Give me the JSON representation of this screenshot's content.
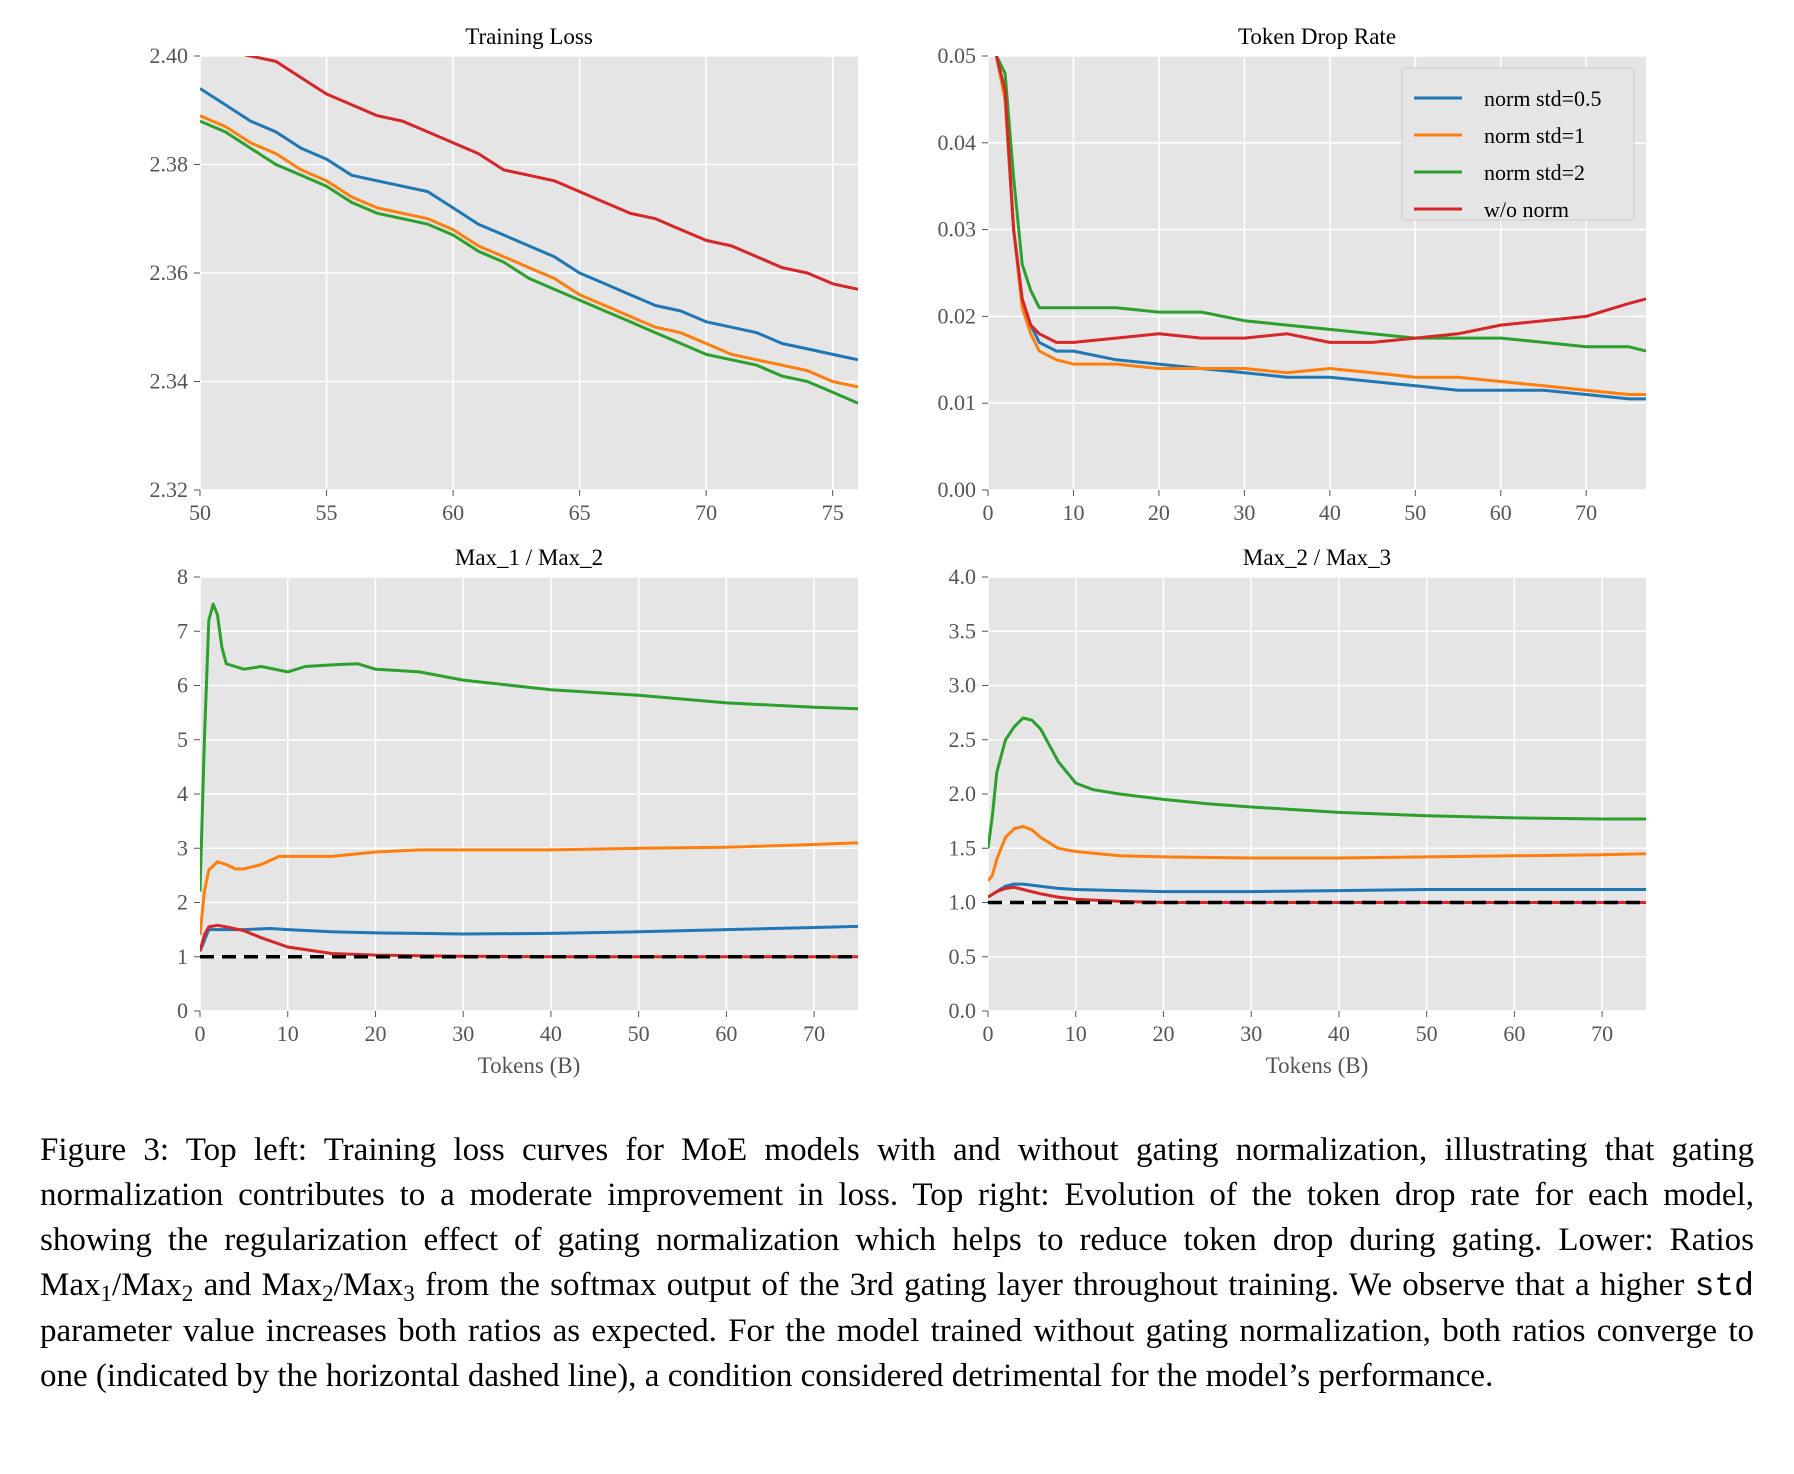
{
  "figure": {
    "colors": {
      "norm_std_0_5": "#1f77b4",
      "norm_std_1": "#ff7f0e",
      "norm_std_2": "#2ca02c",
      "wo_norm": "#d62728",
      "background": "#e5e5e5",
      "grid": "#ffffff",
      "reference": "#000000"
    },
    "legend_placement": "top-right of Token Drop Rate panel"
  },
  "chart_data": [
    {
      "id": "training_loss",
      "type": "line",
      "title": "Training Loss",
      "xlabel": "",
      "ylabel": "",
      "xlim": [
        50,
        76
      ],
      "ylim": [
        2.32,
        2.4
      ],
      "xticks": [
        50,
        55,
        60,
        65,
        70,
        75
      ],
      "xtick_labels": [
        "50",
        "55",
        "60",
        "65",
        "70",
        "75"
      ],
      "yticks": [
        2.32,
        2.34,
        2.36,
        2.38,
        2.4
      ],
      "ytick_labels": [
        "2.32",
        "2.34",
        "2.36",
        "2.38",
        "2.40"
      ],
      "grid": true,
      "series": [
        {
          "name": "norm std=0.5",
          "color": "#1f77b4",
          "x": [
            50,
            51,
            52,
            53,
            54,
            55,
            56,
            57,
            58,
            59,
            60,
            61,
            62,
            63,
            64,
            65,
            66,
            67,
            68,
            69,
            70,
            71,
            72,
            73,
            74,
            75,
            76
          ],
          "y": [
            2.394,
            2.391,
            2.388,
            2.386,
            2.383,
            2.381,
            2.378,
            2.377,
            2.376,
            2.375,
            2.372,
            2.369,
            2.367,
            2.365,
            2.363,
            2.36,
            2.358,
            2.356,
            2.354,
            2.353,
            2.351,
            2.35,
            2.349,
            2.347,
            2.346,
            2.345,
            2.344
          ]
        },
        {
          "name": "norm std=1",
          "color": "#ff7f0e",
          "x": [
            50,
            51,
            52,
            53,
            54,
            55,
            56,
            57,
            58,
            59,
            60,
            61,
            62,
            63,
            64,
            65,
            66,
            67,
            68,
            69,
            70,
            71,
            72,
            73,
            74,
            75,
            76
          ],
          "y": [
            2.389,
            2.387,
            2.384,
            2.382,
            2.379,
            2.377,
            2.374,
            2.372,
            2.371,
            2.37,
            2.368,
            2.365,
            2.363,
            2.361,
            2.359,
            2.356,
            2.354,
            2.352,
            2.35,
            2.349,
            2.347,
            2.345,
            2.344,
            2.343,
            2.342,
            2.34,
            2.339
          ]
        },
        {
          "name": "norm std=2",
          "color": "#2ca02c",
          "x": [
            50,
            51,
            52,
            53,
            54,
            55,
            56,
            57,
            58,
            59,
            60,
            61,
            62,
            63,
            64,
            65,
            66,
            67,
            68,
            69,
            70,
            71,
            72,
            73,
            74,
            75,
            76
          ],
          "y": [
            2.388,
            2.386,
            2.383,
            2.38,
            2.378,
            2.376,
            2.373,
            2.371,
            2.37,
            2.369,
            2.367,
            2.364,
            2.362,
            2.359,
            2.357,
            2.355,
            2.353,
            2.351,
            2.349,
            2.347,
            2.345,
            2.344,
            2.343,
            2.341,
            2.34,
            2.338,
            2.336
          ]
        },
        {
          "name": "w/o norm",
          "color": "#d62728",
          "x": [
            50,
            51,
            52,
            53,
            54,
            55,
            56,
            57,
            58,
            59,
            60,
            61,
            62,
            63,
            64,
            65,
            66,
            67,
            68,
            69,
            70,
            71,
            72,
            73,
            74,
            75,
            76
          ],
          "y": [
            2.402,
            2.401,
            2.4,
            2.399,
            2.396,
            2.393,
            2.391,
            2.389,
            2.388,
            2.386,
            2.384,
            2.382,
            2.379,
            2.378,
            2.377,
            2.375,
            2.373,
            2.371,
            2.37,
            2.368,
            2.366,
            2.365,
            2.363,
            2.361,
            2.36,
            2.358,
            2.357
          ]
        }
      ]
    },
    {
      "id": "token_drop_rate",
      "type": "line",
      "title": "Token Drop Rate",
      "xlabel": "",
      "ylabel": "",
      "xlim": [
        0,
        77
      ],
      "ylim": [
        0,
        0.05
      ],
      "xticks": [
        0,
        10,
        20,
        30,
        40,
        50,
        60,
        70
      ],
      "xtick_labels": [
        "0",
        "10",
        "20",
        "30",
        "40",
        "50",
        "60",
        "70"
      ],
      "yticks": [
        0,
        0.01,
        0.02,
        0.03,
        0.04,
        0.05
      ],
      "ytick_labels": [
        "0.00",
        "0.01",
        "0.02",
        "0.03",
        "0.04",
        "0.05"
      ],
      "grid": true,
      "legend": [
        "norm std=0.5",
        "norm std=1",
        "norm std=2",
        "w/o norm"
      ],
      "series": [
        {
          "name": "norm std=0.5",
          "color": "#1f77b4",
          "x": [
            1,
            2,
            3,
            4,
            5,
            6,
            8,
            10,
            15,
            20,
            25,
            30,
            35,
            40,
            45,
            50,
            55,
            60,
            65,
            70,
            75,
            77
          ],
          "y": [
            0.05,
            0.045,
            0.03,
            0.022,
            0.019,
            0.017,
            0.016,
            0.016,
            0.015,
            0.0145,
            0.014,
            0.0135,
            0.013,
            0.013,
            0.0125,
            0.012,
            0.0115,
            0.0115,
            0.0115,
            0.011,
            0.0105,
            0.0105
          ]
        },
        {
          "name": "norm std=1",
          "color": "#ff7f0e",
          "x": [
            1,
            2,
            3,
            4,
            5,
            6,
            8,
            10,
            15,
            20,
            25,
            30,
            35,
            40,
            45,
            50,
            55,
            60,
            65,
            70,
            75,
            77
          ],
          "y": [
            0.05,
            0.045,
            0.03,
            0.021,
            0.018,
            0.016,
            0.015,
            0.0145,
            0.0145,
            0.014,
            0.014,
            0.014,
            0.0135,
            0.014,
            0.0135,
            0.013,
            0.013,
            0.0125,
            0.012,
            0.0115,
            0.011,
            0.011
          ]
        },
        {
          "name": "norm std=2",
          "color": "#2ca02c",
          "x": [
            1,
            2,
            3,
            4,
            5,
            6,
            8,
            10,
            15,
            20,
            25,
            30,
            35,
            40,
            45,
            50,
            55,
            60,
            65,
            70,
            75,
            77
          ],
          "y": [
            0.05,
            0.048,
            0.036,
            0.026,
            0.023,
            0.021,
            0.021,
            0.021,
            0.021,
            0.0205,
            0.0205,
            0.0195,
            0.019,
            0.0185,
            0.018,
            0.0175,
            0.0175,
            0.0175,
            0.017,
            0.0165,
            0.0165,
            0.016
          ]
        },
        {
          "name": "w/o norm",
          "color": "#d62728",
          "x": [
            1,
            2,
            3,
            4,
            5,
            6,
            8,
            10,
            15,
            20,
            25,
            30,
            35,
            40,
            45,
            50,
            55,
            60,
            65,
            70,
            75,
            77
          ],
          "y": [
            0.05,
            0.046,
            0.03,
            0.022,
            0.019,
            0.018,
            0.017,
            0.017,
            0.0175,
            0.018,
            0.0175,
            0.0175,
            0.018,
            0.017,
            0.017,
            0.0175,
            0.018,
            0.019,
            0.0195,
            0.02,
            0.0215,
            0.022
          ]
        }
      ]
    },
    {
      "id": "max1_max2",
      "type": "line",
      "title": "Max_1 / Max_2",
      "xlabel": "Tokens (B)",
      "ylabel": "",
      "xlim": [
        0,
        75
      ],
      "ylim": [
        0,
        8
      ],
      "xticks": [
        0,
        10,
        20,
        30,
        40,
        50,
        60,
        70
      ],
      "xtick_labels": [
        "0",
        "10",
        "20",
        "30",
        "40",
        "50",
        "60",
        "70"
      ],
      "yticks": [
        0,
        1,
        2,
        3,
        4,
        5,
        6,
        7,
        8
      ],
      "ytick_labels": [
        "0",
        "1",
        "2",
        "3",
        "4",
        "5",
        "6",
        "7",
        "8"
      ],
      "grid": true,
      "reference_line": 1,
      "series": [
        {
          "name": "norm std=0.5",
          "color": "#1f77b4",
          "x": [
            0,
            0.5,
            1,
            2,
            3,
            5,
            8,
            10,
            15,
            20,
            25,
            30,
            40,
            50,
            60,
            70,
            75
          ],
          "y": [
            1.1,
            1.3,
            1.5,
            1.5,
            1.5,
            1.5,
            1.52,
            1.5,
            1.46,
            1.44,
            1.43,
            1.42,
            1.43,
            1.46,
            1.5,
            1.54,
            1.56
          ]
        },
        {
          "name": "norm std=1",
          "color": "#ff7f0e",
          "x": [
            0,
            0.5,
            1,
            2,
            3,
            4,
            5,
            7,
            9,
            10,
            15,
            20,
            25,
            30,
            40,
            50,
            60,
            70,
            75
          ],
          "y": [
            1.4,
            2.2,
            2.6,
            2.75,
            2.7,
            2.62,
            2.62,
            2.7,
            2.85,
            2.85,
            2.85,
            2.93,
            2.97,
            2.97,
            2.97,
            3.0,
            3.02,
            3.07,
            3.1
          ]
        },
        {
          "name": "norm std=2",
          "color": "#2ca02c",
          "x": [
            0,
            0.5,
            1,
            1.5,
            2,
            2.5,
            3,
            4,
            5,
            7,
            10,
            12,
            15,
            18,
            20,
            25,
            30,
            40,
            50,
            60,
            70,
            75
          ],
          "y": [
            2.2,
            5.0,
            7.2,
            7.5,
            7.3,
            6.7,
            6.4,
            6.35,
            6.3,
            6.35,
            6.25,
            6.35,
            6.38,
            6.4,
            6.3,
            6.25,
            6.1,
            5.92,
            5.82,
            5.68,
            5.6,
            5.57
          ]
        },
        {
          "name": "w/o norm",
          "color": "#d62728",
          "x": [
            0,
            0.5,
            1,
            2,
            3,
            5,
            7,
            10,
            15,
            20,
            25,
            30,
            40,
            50,
            60,
            70,
            75
          ],
          "y": [
            1.1,
            1.4,
            1.55,
            1.58,
            1.55,
            1.48,
            1.35,
            1.18,
            1.06,
            1.03,
            1.02,
            1.01,
            1.0,
            1.0,
            1.0,
            1.0,
            1.0
          ]
        }
      ]
    },
    {
      "id": "max2_max3",
      "type": "line",
      "title": "Max_2 / Max_3",
      "xlabel": "Tokens (B)",
      "ylabel": "",
      "xlim": [
        0,
        75
      ],
      "ylim": [
        0,
        4
      ],
      "xticks": [
        0,
        10,
        20,
        30,
        40,
        50,
        60,
        70
      ],
      "xtick_labels": [
        "0",
        "10",
        "20",
        "30",
        "40",
        "50",
        "60",
        "70"
      ],
      "yticks": [
        0,
        0.5,
        1,
        1.5,
        2,
        2.5,
        3,
        3.5,
        4
      ],
      "ytick_labels": [
        "0.0",
        "0.5",
        "1.0",
        "1.5",
        "2.0",
        "2.5",
        "3.0",
        "3.5",
        "4.0"
      ],
      "grid": true,
      "reference_line": 1,
      "series": [
        {
          "name": "norm std=0.5",
          "color": "#1f77b4",
          "x": [
            0,
            1,
            2,
            3,
            4,
            6,
            8,
            10,
            15,
            20,
            30,
            40,
            50,
            60,
            70,
            75
          ],
          "y": [
            1.05,
            1.1,
            1.15,
            1.17,
            1.17,
            1.15,
            1.13,
            1.12,
            1.11,
            1.1,
            1.1,
            1.11,
            1.12,
            1.12,
            1.12,
            1.12
          ]
        },
        {
          "name": "norm std=1",
          "color": "#ff7f0e",
          "x": [
            0,
            0.5,
            1,
            2,
            3,
            4,
            5,
            6,
            8,
            10,
            15,
            20,
            30,
            40,
            50,
            60,
            70,
            75
          ],
          "y": [
            1.2,
            1.25,
            1.4,
            1.6,
            1.68,
            1.7,
            1.67,
            1.6,
            1.5,
            1.47,
            1.43,
            1.42,
            1.41,
            1.41,
            1.42,
            1.43,
            1.44,
            1.45
          ]
        },
        {
          "name": "norm std=2",
          "color": "#2ca02c",
          "x": [
            0,
            0.5,
            1,
            2,
            3,
            4,
            5,
            6,
            7,
            8,
            10,
            12,
            15,
            20,
            25,
            30,
            40,
            50,
            60,
            70,
            75
          ],
          "y": [
            1.5,
            1.8,
            2.2,
            2.5,
            2.62,
            2.7,
            2.68,
            2.6,
            2.45,
            2.3,
            2.1,
            2.04,
            2.0,
            1.95,
            1.91,
            1.88,
            1.83,
            1.8,
            1.78,
            1.77,
            1.77
          ]
        },
        {
          "name": "w/o norm",
          "color": "#d62728",
          "x": [
            0,
            1,
            2,
            3,
            4,
            6,
            8,
            10,
            15,
            20,
            30,
            40,
            50,
            60,
            70,
            75
          ],
          "y": [
            1.05,
            1.1,
            1.13,
            1.14,
            1.12,
            1.08,
            1.05,
            1.03,
            1.01,
            1.0,
            1.0,
            1.0,
            1.0,
            1.0,
            1.0,
            1.0
          ]
        }
      ]
    }
  ],
  "caption": {
    "label": "Figure 3:",
    "part1": " Top left: Training loss curves for MoE models with and without gating normalization, illustrating that gating normalization contributes to a moderate improvement in loss. Top right: Evolution of the token drop rate for each model, showing the regularization effect of gating normalization which helps to reduce token drop during gating. Lower: Ratios ",
    "ratio1_num": "Max",
    "ratio1_num_sub": "1",
    "ratio1_den": "/Max",
    "ratio1_den_sub": "2",
    "and": " and ",
    "ratio2_num": "Max",
    "ratio2_num_sub": "2",
    "ratio2_den": "/Max",
    "ratio2_den_sub": "3",
    "part2": " from the softmax output of the 3rd gating layer throughout training. We observe that a higher ",
    "code": "std",
    "part3": " parameter value increases both ratios as expected. For the model trained without gating normalization, both ratios converge to one (indicated by the horizontal dashed line), a condition considered detrimental for the model’s performance."
  }
}
